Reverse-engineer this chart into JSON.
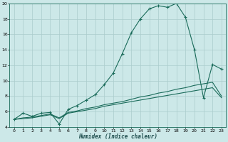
{
  "xlabel": "Humidex (Indice chaleur)",
  "bg_color": "#cce8e8",
  "grid_color": "#aacccc",
  "line_color": "#1a6b5a",
  "xlim": [
    -0.5,
    23.5
  ],
  "ylim": [
    4,
    20
  ],
  "xticks": [
    0,
    1,
    2,
    3,
    4,
    5,
    6,
    7,
    8,
    9,
    10,
    11,
    12,
    13,
    14,
    15,
    16,
    17,
    18,
    19,
    20,
    21,
    22,
    23
  ],
  "yticks": [
    4,
    6,
    8,
    10,
    12,
    14,
    16,
    18,
    20
  ],
  "series1_x": [
    0,
    1,
    2,
    3,
    4,
    5,
    6,
    7,
    8,
    9,
    10,
    11,
    12,
    13,
    14,
    15,
    16,
    17,
    18,
    19,
    20,
    21,
    22,
    23
  ],
  "series1_y": [
    5.0,
    5.8,
    5.4,
    5.8,
    5.9,
    4.4,
    6.3,
    6.8,
    7.5,
    8.2,
    9.5,
    11.0,
    13.5,
    16.2,
    18.0,
    19.3,
    19.7,
    19.5,
    20.0,
    18.2,
    14.0,
    7.8,
    12.1,
    11.5
  ],
  "series2_x": [
    0,
    1,
    2,
    3,
    4,
    5,
    6,
    7,
    8,
    9,
    10,
    11,
    12,
    13,
    14,
    15,
    16,
    17,
    18,
    19,
    20,
    21,
    22,
    23
  ],
  "series2_y": [
    5.0,
    5.2,
    5.3,
    5.5,
    5.7,
    5.2,
    5.9,
    6.1,
    6.4,
    6.6,
    6.9,
    7.1,
    7.3,
    7.6,
    7.9,
    8.1,
    8.4,
    8.6,
    8.9,
    9.1,
    9.4,
    9.6,
    9.8,
    8.0
  ],
  "series3_x": [
    0,
    1,
    2,
    3,
    4,
    5,
    6,
    7,
    8,
    9,
    10,
    11,
    12,
    13,
    14,
    15,
    16,
    17,
    18,
    19,
    20,
    21,
    22,
    23
  ],
  "series3_y": [
    5.0,
    5.1,
    5.2,
    5.4,
    5.6,
    5.1,
    5.8,
    6.0,
    6.2,
    6.4,
    6.7,
    6.9,
    7.1,
    7.3,
    7.5,
    7.7,
    7.9,
    8.1,
    8.3,
    8.5,
    8.7,
    8.9,
    9.1,
    7.8
  ]
}
